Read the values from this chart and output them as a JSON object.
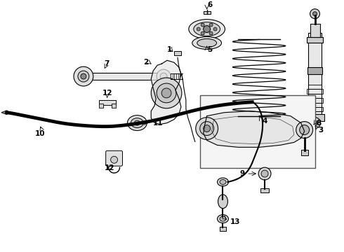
{
  "background_color": "#ffffff",
  "line_color": "#000000",
  "fig_width": 4.9,
  "fig_height": 3.6,
  "dpi": 100,
  "parts": {
    "label_fontsize": 7.5,
    "label_fontweight": "bold"
  }
}
